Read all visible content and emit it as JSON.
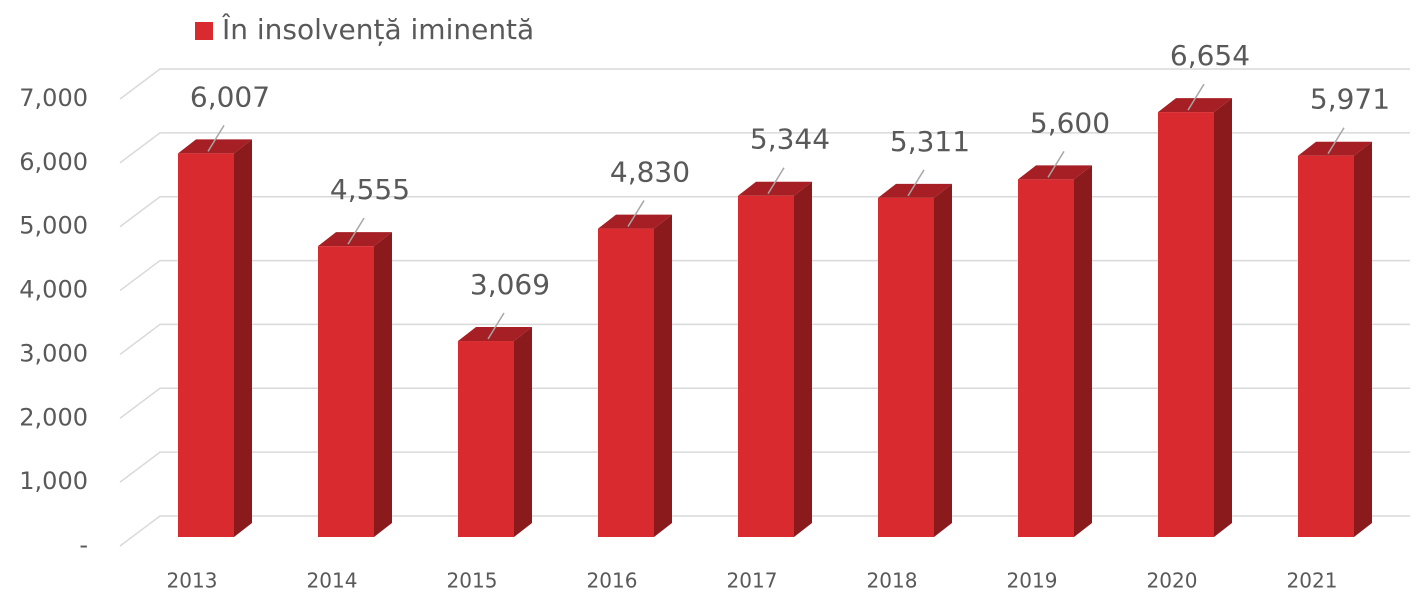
{
  "chart_data": {
    "type": "bar3d",
    "series": [
      {
        "name": "În insolvență iminentă",
        "color": "#d92b2f",
        "values": [
          6007,
          4555,
          3069,
          4830,
          5344,
          5311,
          5600,
          6654,
          5971
        ],
        "value_labels": [
          "6,007",
          "4,555",
          "3,069",
          "4,830",
          "5,344",
          "5,311",
          "5,600",
          "6,654",
          "5,971"
        ]
      }
    ],
    "categories": [
      "2013",
      "2014",
      "2015",
      "2016",
      "2017",
      "2018",
      "2019",
      "2020",
      "2021"
    ],
    "ylim": [
      0,
      7000
    ],
    "yticks": [
      {
        "value": 0,
        "label": "-"
      },
      {
        "value": 1000,
        "label": "1,000"
      },
      {
        "value": 2000,
        "label": "2,000"
      },
      {
        "value": 3000,
        "label": "3,000"
      },
      {
        "value": 4000,
        "label": "4,000"
      },
      {
        "value": 5000,
        "label": "5,000"
      },
      {
        "value": 6000,
        "label": "6,000"
      },
      {
        "value": 7000,
        "label": "7,000"
      }
    ],
    "grid": true,
    "legend": "top-left"
  }
}
